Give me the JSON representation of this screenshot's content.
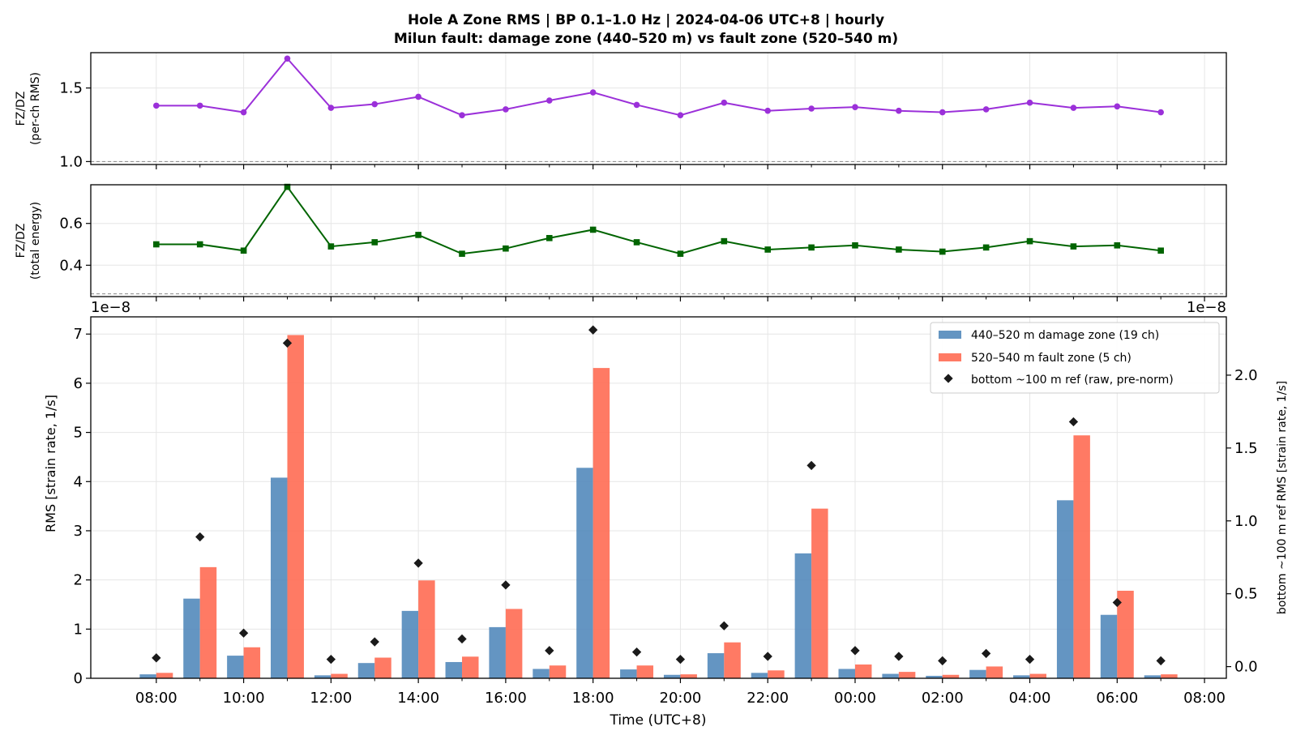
{
  "title_line1": "Hole A Zone RMS  |  BP 0.1–1.0 Hz  |  2024-04-06 UTC+8  |  hourly",
  "title_line2": "Milun fault: damage zone (440–520 m) vs fault zone (520–540 m)",
  "colors": {
    "ratio_rms": "#9b30d9",
    "ratio_energy": "#006400",
    "damage": "#4f86b9",
    "fault": "#ff6f57",
    "ref": "#1a1a1a",
    "grid": "#e6e6e6"
  },
  "chart_data": [
    {
      "type": "line",
      "ylabel_line1": "FZ/DZ",
      "ylabel_line2": "(per-ch RMS)",
      "marker": "circle",
      "ylim": [
        0.98,
        1.74
      ],
      "yticks": [
        1.0,
        1.5
      ],
      "ytick_labels": [
        "1.0",
        "1.5"
      ],
      "reference_line": 1.0,
      "x": [
        0,
        1,
        2,
        3,
        4,
        5,
        6,
        7,
        8,
        9,
        10,
        11,
        12,
        13,
        14,
        15,
        16,
        17,
        18,
        19,
        20,
        21,
        22,
        23
      ],
      "values": [
        1.38,
        1.38,
        1.335,
        1.7,
        1.365,
        1.39,
        1.44,
        1.315,
        1.355,
        1.415,
        1.47,
        1.385,
        1.315,
        1.4,
        1.345,
        1.36,
        1.37,
        1.345,
        1.335,
        1.355,
        1.4,
        1.365,
        1.375,
        1.335
      ]
    },
    {
      "type": "line",
      "ylabel_line1": "FZ/DZ",
      "ylabel_line2": "(total energy)",
      "marker": "square",
      "ylim": [
        0.25,
        0.785
      ],
      "yticks": [
        0.4,
        0.6
      ],
      "ytick_labels": [
        "0.4",
        "0.6"
      ],
      "reference_line": 0.263,
      "x": [
        0,
        1,
        2,
        3,
        4,
        5,
        6,
        7,
        8,
        9,
        10,
        11,
        12,
        13,
        14,
        15,
        16,
        17,
        18,
        19,
        20,
        21,
        22,
        23
      ],
      "values": [
        0.5,
        0.5,
        0.47,
        0.775,
        0.49,
        0.51,
        0.545,
        0.455,
        0.48,
        0.53,
        0.57,
        0.51,
        0.455,
        0.515,
        0.475,
        0.485,
        0.495,
        0.475,
        0.465,
        0.485,
        0.515,
        0.49,
        0.495,
        0.47
      ]
    },
    {
      "type": "bar",
      "ylabel": "RMS  [strain rate, 1/s]",
      "xlabel": "Time (UTC+8)",
      "y2label": "bottom ~100 m ref RMS  [strain rate, 1/s]",
      "offset_label_left": "1e−8",
      "offset_label_right": "1e−8",
      "ylim": [
        0,
        7.35
      ],
      "yticks": [
        0,
        1,
        2,
        3,
        4,
        5,
        6,
        7
      ],
      "ytick_labels": [
        "0",
        "1",
        "2",
        "3",
        "4",
        "5",
        "6",
        "7"
      ],
      "y2lim": [
        -0.08,
        2.4
      ],
      "y2ticks": [
        0.0,
        0.5,
        1.0,
        1.5,
        2.0
      ],
      "y2tick_labels": [
        "0.0",
        "0.5",
        "1.0",
        "1.5",
        "2.0"
      ],
      "xlim": [
        -1.5,
        24.5
      ],
      "xticks": [
        0,
        2,
        4,
        6,
        8,
        10,
        12,
        14,
        16,
        18,
        20,
        22,
        24
      ],
      "xtick_labels": [
        "08:00",
        "10:00",
        "12:00",
        "14:00",
        "16:00",
        "18:00",
        "20:00",
        "22:00",
        "00:00",
        "02:00",
        "04:00",
        "06:00",
        "08:00"
      ],
      "x": [
        0,
        1,
        2,
        3,
        4,
        5,
        6,
        7,
        8,
        9,
        10,
        11,
        12,
        13,
        14,
        15,
        16,
        17,
        18,
        19,
        20,
        21,
        22,
        23
      ],
      "series": [
        {
          "name": "440–520 m  damage zone (19 ch)",
          "kind": "bar",
          "values": [
            0.08,
            1.62,
            0.46,
            4.08,
            0.06,
            0.31,
            1.37,
            0.33,
            1.04,
            0.19,
            4.28,
            0.18,
            0.07,
            0.51,
            0.11,
            2.54,
            0.19,
            0.09,
            0.05,
            0.17,
            0.06,
            3.62,
            1.29,
            0.06
          ]
        },
        {
          "name": "520–540 m  fault zone (5 ch)",
          "kind": "bar",
          "values": [
            0.11,
            2.26,
            0.63,
            6.98,
            0.09,
            0.42,
            1.99,
            0.44,
            1.41,
            0.26,
            6.31,
            0.26,
            0.08,
            0.73,
            0.16,
            3.45,
            0.28,
            0.13,
            0.07,
            0.24,
            0.09,
            4.94,
            1.78,
            0.08
          ]
        },
        {
          "name": "bottom ~100 m ref (raw, pre-norm)",
          "kind": "marker",
          "axis": "right",
          "values": [
            0.06,
            0.89,
            0.23,
            2.22,
            0.05,
            0.17,
            0.71,
            0.19,
            0.56,
            0.11,
            2.31,
            0.1,
            0.05,
            0.28,
            0.07,
            1.38,
            0.11,
            0.07,
            0.04,
            0.09,
            0.05,
            1.68,
            0.44,
            0.04
          ]
        }
      ],
      "legend_position": "upper-right"
    }
  ]
}
